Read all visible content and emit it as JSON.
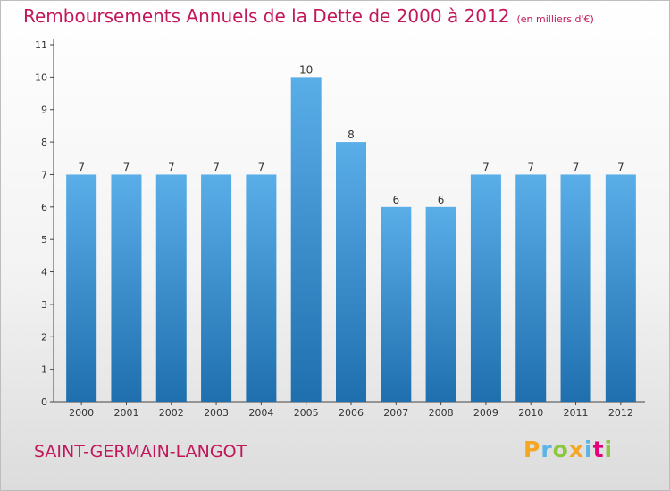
{
  "header": {
    "title": "Remboursements Annuels de la Dette de 2000 à 2012",
    "unit": "(en milliers d'€)"
  },
  "footer": {
    "commune": "SAINT-GERMAIN-LANGOT",
    "brand": "Proxiti"
  },
  "colors": {
    "accent": "#c2185b",
    "bar_top": "#5aaee8",
    "bar_bottom": "#1f6fae"
  },
  "chart_data": {
    "type": "bar",
    "title": "Remboursements Annuels de la Dette de 2000 à 2012",
    "xlabel": "",
    "ylabel": "",
    "categories": [
      "2000",
      "2001",
      "2002",
      "2003",
      "2004",
      "2005",
      "2006",
      "2007",
      "2008",
      "2009",
      "2010",
      "2011",
      "2012"
    ],
    "values": [
      7,
      7,
      7,
      7,
      7,
      10,
      8,
      6,
      6,
      7,
      7,
      7,
      7
    ],
    "ylim": [
      0,
      11
    ],
    "yticks": [
      0,
      1,
      2,
      3,
      4,
      5,
      6,
      7,
      8,
      9,
      10,
      11
    ],
    "grid": false,
    "data_labels": true
  }
}
